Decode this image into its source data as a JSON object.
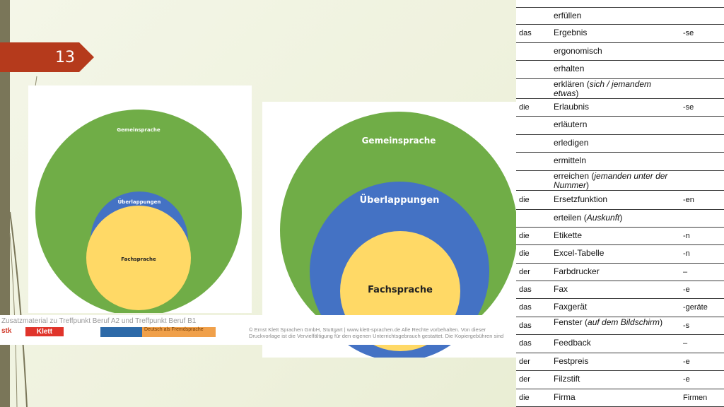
{
  "slide": {
    "number": "13"
  },
  "diagram_small": {
    "outer": "Gemeinsprache",
    "middle": "Überlappungen",
    "inner": "Fachsprache",
    "colors": {
      "outer": "#70ad47",
      "middle": "#4472c4",
      "inner": "#ffd966"
    }
  },
  "diagram_large": {
    "outer": "Gemeinsprache",
    "middle": "Überlappungen",
    "inner": "Fachsprache"
  },
  "banner": {
    "title": "Zusatzmaterial zu Treffpunkt Beruf A2 und Treffpunkt Beruf B1",
    "copyright": "© Ernst Klett Sprachen GmbH, Stuttgart | www.klett-sprachen.de Alle Rechte vorbehalten. Von dieser Druckvorlage ist die Vervielfältigung für den eigenen Unterrichtsgebrauch gestattet. Die Kopiergebühren sind",
    "logo_left": "stk",
    "logo_klett": "Klett",
    "logo_daf": "Deutsch als Fremdsprache"
  },
  "vocab": {
    "rows": [
      {
        "art": "",
        "word": "erfüllen",
        "note": "",
        "plural": ""
      },
      {
        "art": "das",
        "word": "Ergebnis",
        "note": "",
        "plural": "-se"
      },
      {
        "art": "",
        "word": "ergonomisch",
        "note": "",
        "plural": ""
      },
      {
        "art": "",
        "word": "erhalten",
        "note": "",
        "plural": ""
      },
      {
        "art": "",
        "word": "erklären (",
        "note": "sich / jemandem etwas",
        "suffix": ")",
        "plural": ""
      },
      {
        "art": "die",
        "word": "Erlaubnis",
        "note": "",
        "plural": "-se"
      },
      {
        "art": "",
        "word": "erläutern",
        "note": "",
        "plural": ""
      },
      {
        "art": "",
        "word": "erledigen",
        "note": "",
        "plural": ""
      },
      {
        "art": "",
        "word": "ermitteln",
        "note": "",
        "plural": ""
      },
      {
        "art": "",
        "word": "erreichen (",
        "note": "jemanden unter der Nummer",
        "suffix": ")",
        "plural": ""
      },
      {
        "art": "die",
        "word": "Ersetzfunktion",
        "note": "",
        "plural": "-en"
      },
      {
        "art": "",
        "word": "erteilen (",
        "note": "Auskunft",
        "suffix": ")",
        "plural": ""
      },
      {
        "art": "die",
        "word": "Etikette",
        "note": "",
        "plural": "-n"
      },
      {
        "art": "die",
        "word": "Excel-Tabelle",
        "note": "",
        "plural": "-n"
      },
      {
        "art": "der",
        "word": "Farbdrucker",
        "note": "",
        "plural": "–"
      },
      {
        "art": "das",
        "word": "Fax",
        "note": "",
        "plural": "-e"
      },
      {
        "art": "das",
        "word": "Faxgerät",
        "note": "",
        "plural": "-geräte"
      },
      {
        "art": "das",
        "word": "Fenster (",
        "note": "auf dem Bildschirm",
        "suffix": ")",
        "plural": "-s"
      },
      {
        "art": "das",
        "word": "Feedback",
        "note": "",
        "plural": "–"
      },
      {
        "art": "der",
        "word": "Festpreis",
        "note": "",
        "plural": "-e"
      },
      {
        "art": "der",
        "word": "Filzstift",
        "note": "",
        "plural": "-e"
      },
      {
        "art": "die",
        "word": "Firma",
        "note": "",
        "plural": "Firmen"
      }
    ]
  }
}
